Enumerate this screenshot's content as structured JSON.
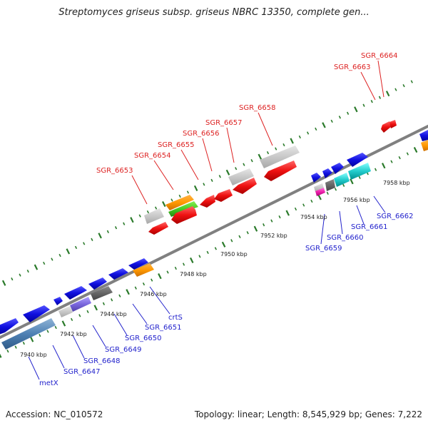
{
  "title": "Streptomyces griseus subsp. griseus NBRC 13350, complete gen...",
  "footer": {
    "accession": "Accession: NC_010572",
    "topology": "Topology: linear; Length: 8,545,929 bp; Genes: 7,222"
  },
  "colors": {
    "backbone": "#808080",
    "tick": "#2a7a2a",
    "forward_gene": "#1010e0",
    "reverse_gene": "#ee1111",
    "label_red": "#dd2222",
    "label_blue": "#2222cc"
  },
  "scale_labels": [
    "7940 kbp",
    "7942 kbp",
    "7944 kbp",
    "7946 kbp",
    "7948 kbp",
    "7950 kbp",
    "7952 kbp",
    "7954 kbp",
    "7956 kbp",
    "7958 kbp"
  ],
  "gene_labels_top": [
    "SGR_6653",
    "SGR_6654",
    "SGR_6655",
    "SGR_6656",
    "SGR_6657",
    "SGR_6658",
    "SGR_6663",
    "SGR_6664"
  ],
  "gene_labels_bottom": [
    "metX",
    "SGR_6647",
    "SGR_6648",
    "SGR_6649",
    "SGR_6650",
    "SGR_6651",
    "crtS",
    "SGR_6659",
    "SGR_6660",
    "SGR_6661",
    "SGR_6662"
  ]
}
